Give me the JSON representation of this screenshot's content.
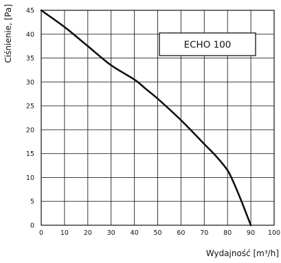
{
  "chart_data": {
    "type": "line",
    "title": "",
    "xlabel": "Wydajność [m³/h]",
    "ylabel": "Ciśnienie, [Pa]",
    "xlim": [
      0,
      100
    ],
    "ylim": [
      0,
      45
    ],
    "x_ticks": [
      0,
      10,
      20,
      30,
      40,
      50,
      60,
      70,
      80,
      90,
      100
    ],
    "y_ticks": [
      0,
      5,
      10,
      15,
      20,
      25,
      30,
      35,
      40,
      45
    ],
    "grid": true,
    "legend_placement": "top-right",
    "colors": {
      "line": "#111111",
      "grid": "#222222",
      "background": "#ffffff"
    },
    "series": [
      {
        "name": "ECHO 100",
        "x": [
          0,
          10,
          20,
          30,
          40,
          45,
          50,
          60,
          70,
          75,
          80,
          83,
          86,
          88,
          90
        ],
        "y": [
          45,
          41.5,
          37.5,
          33.5,
          30.5,
          28.5,
          26.5,
          22,
          17,
          14.5,
          11.5,
          8.5,
          5,
          2.5,
          0
        ]
      }
    ]
  }
}
